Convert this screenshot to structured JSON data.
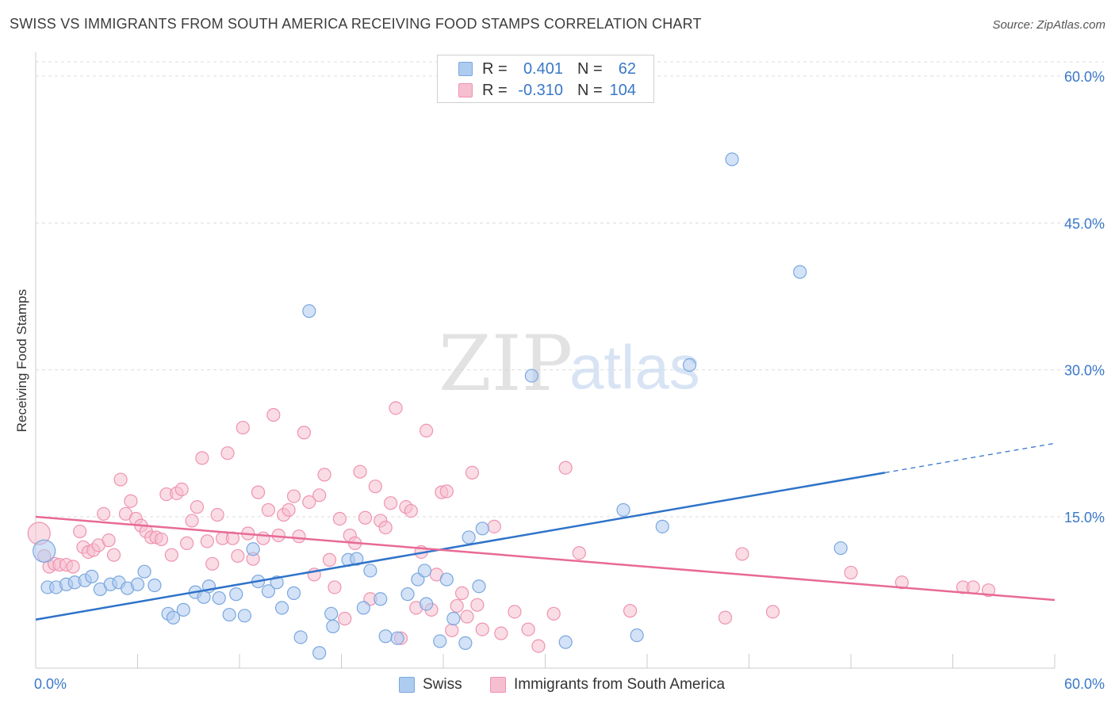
{
  "header": {
    "title": "SWISS VS IMMIGRANTS FROM SOUTH AMERICA RECEIVING FOOD STAMPS CORRELATION CHART",
    "source": "Source: ZipAtlas.com"
  },
  "watermark": {
    "zip": "ZIP",
    "atlas": "atlas"
  },
  "legend_top": {
    "rows": [
      {
        "r_label": "R =",
        "r_value": "0.401",
        "n_label": "N =",
        "n_value": "62"
      },
      {
        "r_label": "R =",
        "r_value": "-0.310",
        "n_label": "N =",
        "n_value": "104"
      }
    ]
  },
  "legend_bottom": {
    "swiss": "Swiss",
    "immigrants": "Immigrants from South America"
  },
  "colors": {
    "swiss_fill": "#aecbf0",
    "swiss_stroke": "#7aa7de",
    "swiss_line": "#2f73c9",
    "imm_fill": "#f6bfd0",
    "imm_stroke": "#ef93b0",
    "imm_line": "#e86a96",
    "tick_label": "#3a78c8",
    "grid": "#dddddd"
  },
  "chart_data": {
    "type": "scatter",
    "title": "SWISS VS IMMIGRANTS FROM SOUTH AMERICA RECEIVING FOOD STAMPS CORRELATION CHART",
    "xlabel": "",
    "ylabel": "Receiving Food Stamps",
    "xlim": [
      0,
      60
    ],
    "ylim": [
      0,
      60
    ],
    "x_tick_labels": [
      "0.0%",
      "60.0%"
    ],
    "y_ticks": [
      15,
      30,
      45,
      60
    ],
    "y_tick_labels": [
      "15.0%",
      "30.0%",
      "45.0%",
      "60.0%"
    ],
    "grid": true,
    "legend_position": "top-center",
    "series": [
      {
        "name": "Swiss",
        "r": 0.401,
        "n": 62,
        "trend": {
          "x0": 0,
          "y0": 4.5,
          "x1": 50,
          "y1": 19.5,
          "x_dash_end": 60,
          "y_dash_end": 22.5
        },
        "points": [
          [
            0.5,
            11.5
          ],
          [
            0.7,
            7.8
          ],
          [
            1.2,
            7.8
          ],
          [
            1.8,
            8.1
          ],
          [
            2.3,
            8.3
          ],
          [
            2.9,
            8.5
          ],
          [
            3.3,
            8.9
          ],
          [
            3.8,
            7.6
          ],
          [
            4.4,
            8.1
          ],
          [
            4.9,
            8.3
          ],
          [
            5.4,
            7.7
          ],
          [
            6.0,
            8.1
          ],
          [
            6.4,
            9.4
          ],
          [
            7.0,
            8.0
          ],
          [
            7.8,
            5.1
          ],
          [
            8.1,
            4.7
          ],
          [
            8.7,
            5.5
          ],
          [
            9.4,
            7.3
          ],
          [
            9.9,
            6.8
          ],
          [
            10.2,
            7.9
          ],
          [
            10.8,
            6.7
          ],
          [
            11.4,
            5.0
          ],
          [
            11.8,
            7.1
          ],
          [
            12.3,
            4.9
          ],
          [
            12.8,
            11.7
          ],
          [
            13.1,
            8.4
          ],
          [
            13.7,
            7.4
          ],
          [
            14.2,
            8.3
          ],
          [
            14.5,
            5.7
          ],
          [
            15.2,
            7.2
          ],
          [
            15.6,
            2.7
          ],
          [
            16.1,
            36.0
          ],
          [
            16.7,
            1.1
          ],
          [
            17.4,
            5.1
          ],
          [
            17.5,
            3.8
          ],
          [
            18.4,
            10.6
          ],
          [
            18.9,
            10.7
          ],
          [
            19.3,
            5.7
          ],
          [
            19.7,
            9.5
          ],
          [
            20.3,
            6.6
          ],
          [
            20.6,
            2.8
          ],
          [
            21.3,
            2.6
          ],
          [
            21.9,
            7.1
          ],
          [
            22.5,
            8.6
          ],
          [
            22.9,
            9.5
          ],
          [
            23.0,
            6.1
          ],
          [
            23.8,
            2.3
          ],
          [
            24.2,
            8.6
          ],
          [
            24.6,
            4.6
          ],
          [
            25.3,
            2.1
          ],
          [
            25.5,
            12.9
          ],
          [
            26.1,
            7.9
          ],
          [
            26.3,
            13.8
          ],
          [
            29.2,
            29.4
          ],
          [
            31.2,
            2.2
          ],
          [
            34.6,
            15.7
          ],
          [
            35.4,
            2.9
          ],
          [
            36.9,
            14.0
          ],
          [
            41.0,
            51.5
          ],
          [
            45.0,
            40.0
          ],
          [
            47.4,
            11.8
          ],
          [
            38.5,
            30.5
          ]
        ]
      },
      {
        "name": "Immigrants from South America",
        "r": -0.31,
        "n": 104,
        "trend": {
          "x0": 0,
          "y0": 15.0,
          "x1": 60,
          "y1": 6.5
        },
        "points": [
          [
            0.2,
            13.3
          ],
          [
            0.5,
            11.0
          ],
          [
            0.8,
            9.9
          ],
          [
            1.1,
            10.2
          ],
          [
            1.4,
            10.1
          ],
          [
            1.8,
            10.1
          ],
          [
            2.2,
            9.9
          ],
          [
            2.6,
            13.5
          ],
          [
            2.8,
            11.9
          ],
          [
            3.1,
            11.4
          ],
          [
            3.4,
            11.6
          ],
          [
            3.7,
            12.1
          ],
          [
            4.0,
            15.3
          ],
          [
            4.3,
            12.6
          ],
          [
            4.6,
            11.1
          ],
          [
            5.0,
            18.8
          ],
          [
            5.3,
            15.3
          ],
          [
            5.6,
            16.6
          ],
          [
            5.9,
            14.8
          ],
          [
            6.2,
            14.1
          ],
          [
            6.5,
            13.5
          ],
          [
            6.8,
            12.9
          ],
          [
            7.1,
            12.9
          ],
          [
            7.4,
            12.7
          ],
          [
            7.7,
            17.3
          ],
          [
            8.0,
            11.1
          ],
          [
            8.3,
            17.4
          ],
          [
            8.6,
            17.8
          ],
          [
            8.9,
            12.3
          ],
          [
            9.2,
            14.6
          ],
          [
            9.5,
            16.0
          ],
          [
            9.8,
            21.0
          ],
          [
            10.1,
            12.5
          ],
          [
            10.4,
            10.2
          ],
          [
            10.7,
            15.2
          ],
          [
            11.0,
            12.8
          ],
          [
            11.3,
            21.5
          ],
          [
            11.6,
            12.8
          ],
          [
            11.9,
            11.0
          ],
          [
            12.2,
            24.1
          ],
          [
            12.5,
            13.3
          ],
          [
            12.8,
            10.7
          ],
          [
            13.1,
            17.5
          ],
          [
            13.4,
            12.8
          ],
          [
            13.7,
            15.7
          ],
          [
            14.0,
            25.4
          ],
          [
            14.3,
            13.1
          ],
          [
            14.6,
            15.2
          ],
          [
            14.9,
            15.7
          ],
          [
            15.2,
            17.1
          ],
          [
            15.5,
            13.0
          ],
          [
            15.8,
            23.6
          ],
          [
            16.1,
            16.5
          ],
          [
            16.4,
            9.1
          ],
          [
            16.7,
            17.2
          ],
          [
            17.0,
            19.3
          ],
          [
            17.3,
            10.6
          ],
          [
            17.6,
            7.8
          ],
          [
            17.9,
            14.8
          ],
          [
            18.2,
            4.6
          ],
          [
            18.5,
            13.1
          ],
          [
            18.8,
            12.3
          ],
          [
            19.1,
            19.6
          ],
          [
            19.4,
            14.9
          ],
          [
            19.7,
            6.6
          ],
          [
            20.0,
            18.1
          ],
          [
            20.3,
            14.6
          ],
          [
            20.6,
            13.9
          ],
          [
            20.9,
            16.4
          ],
          [
            21.2,
            26.1
          ],
          [
            21.5,
            2.6
          ],
          [
            21.8,
            16.0
          ],
          [
            22.1,
            15.6
          ],
          [
            22.4,
            5.7
          ],
          [
            22.7,
            11.4
          ],
          [
            23.0,
            23.8
          ],
          [
            23.3,
            5.5
          ],
          [
            23.6,
            9.1
          ],
          [
            23.9,
            17.5
          ],
          [
            24.2,
            17.6
          ],
          [
            24.5,
            3.4
          ],
          [
            24.8,
            5.9
          ],
          [
            25.1,
            7.2
          ],
          [
            25.4,
            4.8
          ],
          [
            25.7,
            19.5
          ],
          [
            26.0,
            6.0
          ],
          [
            26.3,
            3.5
          ],
          [
            27.0,
            14.0
          ],
          [
            27.4,
            3.1
          ],
          [
            28.2,
            5.3
          ],
          [
            29.0,
            3.5
          ],
          [
            29.6,
            1.8
          ],
          [
            30.5,
            5.1
          ],
          [
            31.2,
            20.0
          ],
          [
            32.0,
            11.3
          ],
          [
            35.0,
            5.4
          ],
          [
            40.6,
            4.7
          ],
          [
            41.6,
            11.2
          ],
          [
            43.4,
            5.3
          ],
          [
            48.0,
            9.3
          ],
          [
            54.6,
            7.8
          ],
          [
            55.2,
            7.8
          ],
          [
            56.1,
            7.5
          ],
          [
            51.0,
            8.3
          ]
        ]
      }
    ]
  }
}
